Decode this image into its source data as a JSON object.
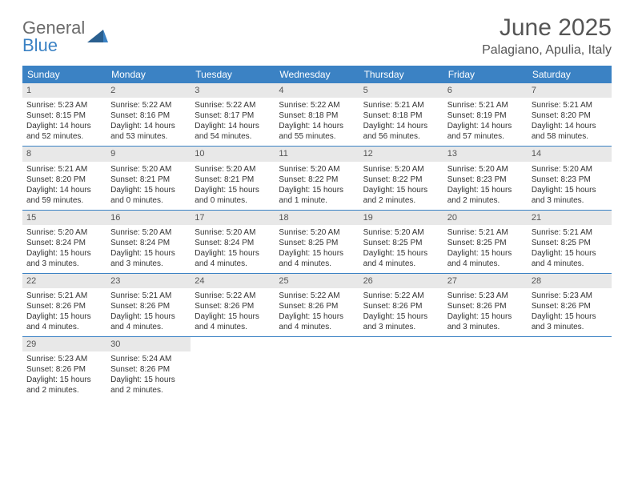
{
  "logo": {
    "line1": "General",
    "line2": "Blue"
  },
  "title": "June 2025",
  "location": "Palagiano, Apulia, Italy",
  "colors": {
    "header_bg": "#3b82c4",
    "daynum_bg": "#e8e8e8",
    "text": "#333333",
    "title": "#555555",
    "logo_gray": "#6b6b6b",
    "logo_blue": "#3b82c4",
    "row_border": "#3b82c4"
  },
  "weekdays": [
    "Sunday",
    "Monday",
    "Tuesday",
    "Wednesday",
    "Thursday",
    "Friday",
    "Saturday"
  ],
  "weeks": [
    [
      {
        "n": "1",
        "sunrise": "Sunrise: 5:23 AM",
        "sunset": "Sunset: 8:15 PM",
        "daylight1": "Daylight: 14 hours",
        "daylight2": "and 52 minutes."
      },
      {
        "n": "2",
        "sunrise": "Sunrise: 5:22 AM",
        "sunset": "Sunset: 8:16 PM",
        "daylight1": "Daylight: 14 hours",
        "daylight2": "and 53 minutes."
      },
      {
        "n": "3",
        "sunrise": "Sunrise: 5:22 AM",
        "sunset": "Sunset: 8:17 PM",
        "daylight1": "Daylight: 14 hours",
        "daylight2": "and 54 minutes."
      },
      {
        "n": "4",
        "sunrise": "Sunrise: 5:22 AM",
        "sunset": "Sunset: 8:18 PM",
        "daylight1": "Daylight: 14 hours",
        "daylight2": "and 55 minutes."
      },
      {
        "n": "5",
        "sunrise": "Sunrise: 5:21 AM",
        "sunset": "Sunset: 8:18 PM",
        "daylight1": "Daylight: 14 hours",
        "daylight2": "and 56 minutes."
      },
      {
        "n": "6",
        "sunrise": "Sunrise: 5:21 AM",
        "sunset": "Sunset: 8:19 PM",
        "daylight1": "Daylight: 14 hours",
        "daylight2": "and 57 minutes."
      },
      {
        "n": "7",
        "sunrise": "Sunrise: 5:21 AM",
        "sunset": "Sunset: 8:20 PM",
        "daylight1": "Daylight: 14 hours",
        "daylight2": "and 58 minutes."
      }
    ],
    [
      {
        "n": "8",
        "sunrise": "Sunrise: 5:21 AM",
        "sunset": "Sunset: 8:20 PM",
        "daylight1": "Daylight: 14 hours",
        "daylight2": "and 59 minutes."
      },
      {
        "n": "9",
        "sunrise": "Sunrise: 5:20 AM",
        "sunset": "Sunset: 8:21 PM",
        "daylight1": "Daylight: 15 hours",
        "daylight2": "and 0 minutes."
      },
      {
        "n": "10",
        "sunrise": "Sunrise: 5:20 AM",
        "sunset": "Sunset: 8:21 PM",
        "daylight1": "Daylight: 15 hours",
        "daylight2": "and 0 minutes."
      },
      {
        "n": "11",
        "sunrise": "Sunrise: 5:20 AM",
        "sunset": "Sunset: 8:22 PM",
        "daylight1": "Daylight: 15 hours",
        "daylight2": "and 1 minute."
      },
      {
        "n": "12",
        "sunrise": "Sunrise: 5:20 AM",
        "sunset": "Sunset: 8:22 PM",
        "daylight1": "Daylight: 15 hours",
        "daylight2": "and 2 minutes."
      },
      {
        "n": "13",
        "sunrise": "Sunrise: 5:20 AM",
        "sunset": "Sunset: 8:23 PM",
        "daylight1": "Daylight: 15 hours",
        "daylight2": "and 2 minutes."
      },
      {
        "n": "14",
        "sunrise": "Sunrise: 5:20 AM",
        "sunset": "Sunset: 8:23 PM",
        "daylight1": "Daylight: 15 hours",
        "daylight2": "and 3 minutes."
      }
    ],
    [
      {
        "n": "15",
        "sunrise": "Sunrise: 5:20 AM",
        "sunset": "Sunset: 8:24 PM",
        "daylight1": "Daylight: 15 hours",
        "daylight2": "and 3 minutes."
      },
      {
        "n": "16",
        "sunrise": "Sunrise: 5:20 AM",
        "sunset": "Sunset: 8:24 PM",
        "daylight1": "Daylight: 15 hours",
        "daylight2": "and 3 minutes."
      },
      {
        "n": "17",
        "sunrise": "Sunrise: 5:20 AM",
        "sunset": "Sunset: 8:24 PM",
        "daylight1": "Daylight: 15 hours",
        "daylight2": "and 4 minutes."
      },
      {
        "n": "18",
        "sunrise": "Sunrise: 5:20 AM",
        "sunset": "Sunset: 8:25 PM",
        "daylight1": "Daylight: 15 hours",
        "daylight2": "and 4 minutes."
      },
      {
        "n": "19",
        "sunrise": "Sunrise: 5:20 AM",
        "sunset": "Sunset: 8:25 PM",
        "daylight1": "Daylight: 15 hours",
        "daylight2": "and 4 minutes."
      },
      {
        "n": "20",
        "sunrise": "Sunrise: 5:21 AM",
        "sunset": "Sunset: 8:25 PM",
        "daylight1": "Daylight: 15 hours",
        "daylight2": "and 4 minutes."
      },
      {
        "n": "21",
        "sunrise": "Sunrise: 5:21 AM",
        "sunset": "Sunset: 8:25 PM",
        "daylight1": "Daylight: 15 hours",
        "daylight2": "and 4 minutes."
      }
    ],
    [
      {
        "n": "22",
        "sunrise": "Sunrise: 5:21 AM",
        "sunset": "Sunset: 8:26 PM",
        "daylight1": "Daylight: 15 hours",
        "daylight2": "and 4 minutes."
      },
      {
        "n": "23",
        "sunrise": "Sunrise: 5:21 AM",
        "sunset": "Sunset: 8:26 PM",
        "daylight1": "Daylight: 15 hours",
        "daylight2": "and 4 minutes."
      },
      {
        "n": "24",
        "sunrise": "Sunrise: 5:22 AM",
        "sunset": "Sunset: 8:26 PM",
        "daylight1": "Daylight: 15 hours",
        "daylight2": "and 4 minutes."
      },
      {
        "n": "25",
        "sunrise": "Sunrise: 5:22 AM",
        "sunset": "Sunset: 8:26 PM",
        "daylight1": "Daylight: 15 hours",
        "daylight2": "and 4 minutes."
      },
      {
        "n": "26",
        "sunrise": "Sunrise: 5:22 AM",
        "sunset": "Sunset: 8:26 PM",
        "daylight1": "Daylight: 15 hours",
        "daylight2": "and 3 minutes."
      },
      {
        "n": "27",
        "sunrise": "Sunrise: 5:23 AM",
        "sunset": "Sunset: 8:26 PM",
        "daylight1": "Daylight: 15 hours",
        "daylight2": "and 3 minutes."
      },
      {
        "n": "28",
        "sunrise": "Sunrise: 5:23 AM",
        "sunset": "Sunset: 8:26 PM",
        "daylight1": "Daylight: 15 hours",
        "daylight2": "and 3 minutes."
      }
    ],
    [
      {
        "n": "29",
        "sunrise": "Sunrise: 5:23 AM",
        "sunset": "Sunset: 8:26 PM",
        "daylight1": "Daylight: 15 hours",
        "daylight2": "and 2 minutes."
      },
      {
        "n": "30",
        "sunrise": "Sunrise: 5:24 AM",
        "sunset": "Sunset: 8:26 PM",
        "daylight1": "Daylight: 15 hours",
        "daylight2": "and 2 minutes."
      },
      null,
      null,
      null,
      null,
      null
    ]
  ]
}
